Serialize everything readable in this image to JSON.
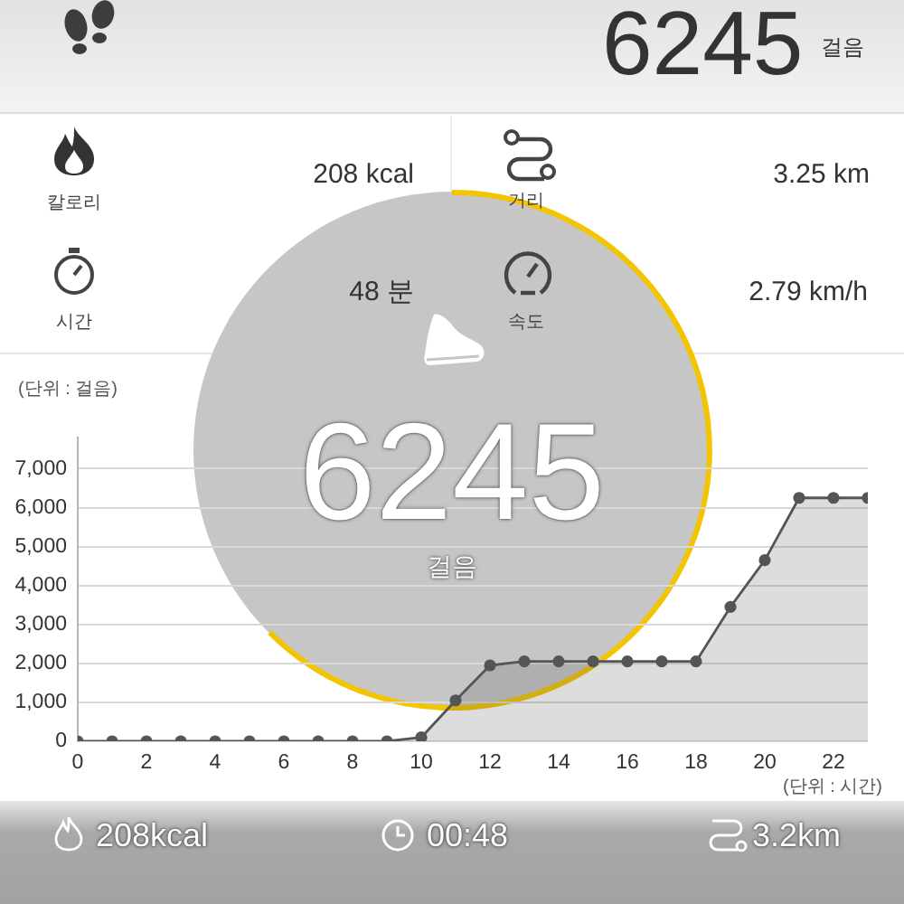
{
  "chart_data": {
    "type": "area",
    "xlabel": "(단위 : 시간)",
    "ylabel": "(단위 : 걸음)",
    "x": [
      0,
      1,
      2,
      3,
      4,
      5,
      6,
      7,
      8,
      9,
      10,
      11,
      12,
      13,
      14,
      15,
      16,
      17,
      18,
      19,
      20,
      21,
      22,
      23
    ],
    "series": [
      {
        "color": "#555555",
        "values": [
          0,
          0,
          0,
          0,
          0,
          0,
          0,
          0,
          0,
          0,
          100,
          1050,
          1950,
          2050,
          2050,
          2050,
          2050,
          2050,
          2050,
          3450,
          4650,
          6250,
          6250,
          6250
        ]
      }
    ],
    "xlim": [
      0,
      23
    ],
    "xticks": [
      0,
      2,
      4,
      6,
      8,
      10,
      12,
      14,
      16,
      18,
      20,
      22
    ],
    "ylim": [
      0,
      7800
    ],
    "yticks": [
      0,
      {
        "value": 1000,
        "label": "1,000"
      },
      {
        "value": 2000,
        "label": "2,000"
      },
      {
        "value": 3000,
        "label": "3,000"
      },
      {
        "value": 4000,
        "label": "4,000"
      },
      {
        "value": 5000,
        "label": "5,000"
      },
      {
        "value": 6000,
        "label": "6,000"
      },
      {
        "value": 7000,
        "label": "7,000"
      }
    ],
    "grid": "y",
    "legend": false,
    "marker": "circle",
    "line_style": "solid",
    "annotations": [
      "6245",
      "걸음",
      "칼로리",
      "208 kcal",
      "거리",
      "3.25 km",
      "시간",
      "48 분",
      "속도",
      "2.79 km/h",
      "6245",
      "걸음",
      "208kcal",
      "00:48",
      "3.2km"
    ]
  }
}
